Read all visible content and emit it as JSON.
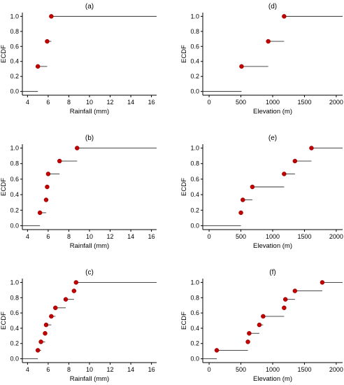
{
  "chart_data": [
    {
      "panel": "(a)",
      "type": "ecdf-step",
      "xlabel": "Rainfall (mm)",
      "ylabel": "ECDF",
      "xlim": [
        3.5,
        16.5
      ],
      "ylim": [
        -0.05,
        1.05
      ],
      "xticks": [
        "4",
        "6",
        "8",
        "10",
        "12",
        "14",
        "16"
      ],
      "yticks": [
        "0.0",
        "0.2",
        "0.4",
        "0.6",
        "0.8",
        "1.0"
      ],
      "x": [
        5.0,
        5.9,
        6.3
      ],
      "y": [
        0.333,
        0.667,
        1.0
      ],
      "x_min_line": 3.5,
      "x_max_line": 16.5,
      "color": "#c00000"
    },
    {
      "panel": "(b)",
      "type": "ecdf-step",
      "xlabel": "Rainfall (mm)",
      "ylabel": "ECDF",
      "xlim": [
        3.5,
        16.5
      ],
      "ylim": [
        -0.05,
        1.05
      ],
      "xticks": [
        "4",
        "6",
        "8",
        "10",
        "12",
        "14",
        "16"
      ],
      "yticks": [
        "0.0",
        "0.2",
        "0.4",
        "0.6",
        "0.8",
        "1.0"
      ],
      "x": [
        5.2,
        5.8,
        5.9,
        6.0,
        7.1,
        8.8
      ],
      "y": [
        0.167,
        0.333,
        0.5,
        0.667,
        0.833,
        1.0
      ],
      "x_min_line": 3.5,
      "x_max_line": 16.5,
      "color": "#c00000"
    },
    {
      "panel": "(c)",
      "type": "ecdf-step",
      "xlabel": "Rainfall (mm)",
      "ylabel": "ECDF",
      "xlim": [
        3.5,
        16.5
      ],
      "ylim": [
        -0.05,
        1.05
      ],
      "xticks": [
        "4",
        "6",
        "8",
        "10",
        "12",
        "14",
        "16"
      ],
      "yticks": [
        "0.0",
        "0.2",
        "0.4",
        "0.6",
        "0.8",
        "1.0"
      ],
      "x": [
        5.0,
        5.3,
        5.7,
        5.8,
        6.3,
        6.7,
        7.7,
        8.5,
        8.7
      ],
      "y": [
        0.111,
        0.222,
        0.333,
        0.444,
        0.556,
        0.667,
        0.778,
        0.889,
        1.0
      ],
      "x_min_line": 3.5,
      "x_max_line": 16.5,
      "color": "#c00000"
    },
    {
      "panel": "(d)",
      "type": "ecdf-step",
      "xlabel": "Elevation (m)",
      "ylabel": "ECDF",
      "xlim": [
        -100,
        2100
      ],
      "ylim": [
        -0.05,
        1.05
      ],
      "xticks": [
        "0",
        "500",
        "1000",
        "1500",
        "2000"
      ],
      "yticks": [
        "0.0",
        "0.2",
        "0.4",
        "0.6",
        "0.8",
        "1.0"
      ],
      "x": [
        510,
        930,
        1180
      ],
      "y": [
        0.333,
        0.667,
        1.0
      ],
      "x_min_line": -100,
      "x_max_line": 2100,
      "color": "#c00000"
    },
    {
      "panel": "(e)",
      "type": "ecdf-step",
      "xlabel": "Elevation (m)",
      "ylabel": "ECDF",
      "xlim": [
        -100,
        2100
      ],
      "ylim": [
        -0.05,
        1.05
      ],
      "xticks": [
        "0",
        "500",
        "1000",
        "1500",
        "2000"
      ],
      "yticks": [
        "0.0",
        "0.2",
        "0.4",
        "0.6",
        "0.8",
        "1.0"
      ],
      "x": [
        500,
        530,
        680,
        1180,
        1350,
        1610
      ],
      "y": [
        0.167,
        0.333,
        0.5,
        0.667,
        0.833,
        1.0
      ],
      "x_min_line": -100,
      "x_max_line": 2100,
      "color": "#c00000"
    },
    {
      "panel": "(f)",
      "type": "ecdf-step",
      "xlabel": "Elevation (m)",
      "ylabel": "ECDF",
      "xlim": [
        -100,
        2100
      ],
      "ylim": [
        -0.05,
        1.05
      ],
      "xticks": [
        "0",
        "500",
        "1000",
        "1500",
        "2000"
      ],
      "yticks": [
        "0.0",
        "0.2",
        "0.4",
        "0.6",
        "0.8",
        "1.0"
      ],
      "x": [
        120,
        610,
        630,
        790,
        850,
        1180,
        1200,
        1350,
        1780
      ],
      "y": [
        0.111,
        0.222,
        0.333,
        0.444,
        0.556,
        0.667,
        0.778,
        0.889,
        1.0
      ],
      "x_min_line": -100,
      "x_max_line": 2100,
      "color": "#c00000"
    }
  ]
}
